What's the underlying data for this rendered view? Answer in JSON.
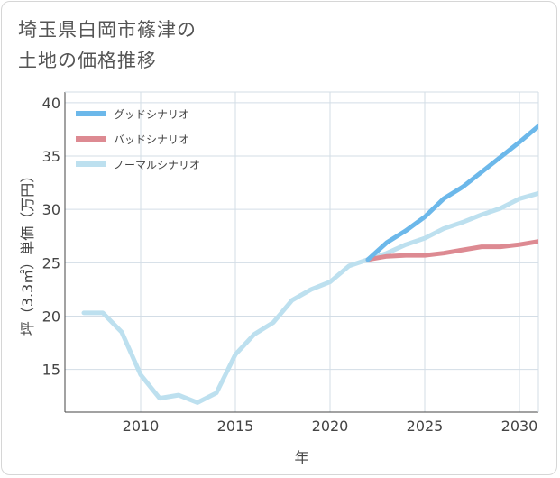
{
  "title": {
    "line1": "埼玉県白岡市篠津の",
    "line2": "土地の価格推移"
  },
  "chart_data": {
    "type": "line",
    "xlabel": "年",
    "ylabel": "坪（3.3㎡）単価（万円）",
    "xlim": [
      2006,
      2031
    ],
    "ylim": [
      11,
      41
    ],
    "x_ticks": [
      2010,
      2015,
      2020,
      2025,
      2030
    ],
    "y_ticks": [
      15,
      20,
      25,
      30,
      35,
      40
    ],
    "grid": true,
    "legend_position": "top-left",
    "series": [
      {
        "name": "グッドシナリオ",
        "color": "#6cb8ea",
        "x": [
          2022,
          2023,
          2024,
          2025,
          2026,
          2027,
          2028,
          2029,
          2030,
          2031
        ],
        "y": [
          25.3,
          26.9,
          28.0,
          29.3,
          31.0,
          32.1,
          33.5,
          34.9,
          36.3,
          37.8
        ]
      },
      {
        "name": "バッドシナリオ",
        "color": "#dd8a92",
        "x": [
          2022,
          2023,
          2024,
          2025,
          2026,
          2027,
          2028,
          2029,
          2030,
          2031
        ],
        "y": [
          25.3,
          25.6,
          25.7,
          25.7,
          25.9,
          26.2,
          26.5,
          26.5,
          26.7,
          27.0
        ]
      },
      {
        "name": "ノーマルシナリオ",
        "color": "#bde0ef",
        "x": [
          2007,
          2008,
          2009,
          2010,
          2011,
          2012,
          2013,
          2014,
          2015,
          2016,
          2017,
          2018,
          2019,
          2020,
          2021,
          2022,
          2023,
          2024,
          2025,
          2026,
          2027,
          2028,
          2029,
          2030,
          2031
        ],
        "y": [
          20.3,
          20.3,
          18.5,
          14.5,
          12.3,
          12.6,
          11.9,
          12.8,
          16.4,
          18.3,
          19.4,
          21.5,
          22.5,
          23.2,
          24.7,
          25.3,
          25.9,
          26.7,
          27.3,
          28.2,
          28.8,
          29.5,
          30.1,
          31.0,
          31.5
        ]
      }
    ]
  }
}
